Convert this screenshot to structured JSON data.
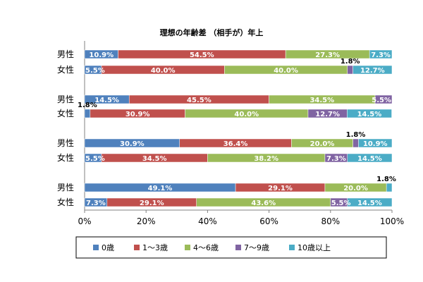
{
  "chart_data": {
    "type": "bar",
    "orientation": "horizontal",
    "stacked": "percent",
    "title": "理想の年齢差 （相手が）年上",
    "categories": [
      "男性",
      "女性",
      "男性",
      "女性",
      "男性",
      "女性",
      "男性",
      "女性"
    ],
    "series": [
      {
        "name": "0歳",
        "color": "#4F81BD",
        "values": [
          10.9,
          5.5,
          14.5,
          1.8,
          30.9,
          5.5,
          49.1,
          7.3
        ]
      },
      {
        "name": "1～3歳",
        "color": "#C0504D",
        "values": [
          54.5,
          40.0,
          45.5,
          30.9,
          36.4,
          34.5,
          29.1,
          29.1
        ]
      },
      {
        "name": "4～6歳",
        "color": "#9BBB59",
        "values": [
          27.3,
          40.0,
          34.5,
          40.0,
          20.0,
          38.2,
          20.0,
          43.6
        ]
      },
      {
        "name": "7～9歳",
        "color": "#8064A2",
        "values": [
          0,
          1.8,
          5.5,
          12.7,
          1.8,
          7.3,
          0,
          5.5
        ]
      },
      {
        "name": "10歳以上",
        "color": "#4BACC6",
        "values": [
          7.3,
          12.7,
          0,
          14.5,
          10.9,
          14.5,
          1.8,
          14.5
        ]
      }
    ],
    "data_labels": [
      [
        "10.9%",
        "54.5%",
        "27.3%",
        "",
        "7.3%"
      ],
      [
        "5.5%",
        "40.0%",
        "40.0%",
        "1.8%",
        "12.7%"
      ],
      [
        "14.5%",
        "45.5%",
        "34.5%",
        "5.5%",
        ""
      ],
      [
        "1.8%",
        "30.9%",
        "40.0%",
        "12.7%",
        "14.5%"
      ],
      [
        "30.9%",
        "36.4%",
        "20.0%",
        "1.8%",
        "10.9%"
      ],
      [
        "5.5%",
        "34.5%",
        "38.2%",
        "7.3%",
        "14.5%"
      ],
      [
        "49.1%",
        "29.1%",
        "20.0%",
        "",
        "1.8%"
      ],
      [
        "7.3%",
        "29.1%",
        "43.6%",
        "5.5%",
        "14.5%"
      ]
    ],
    "xlim": [
      0,
      100
    ],
    "xticks": [
      "0%",
      "20%",
      "40%",
      "60%",
      "80%",
      "100%"
    ],
    "legend_position": "bottom"
  }
}
